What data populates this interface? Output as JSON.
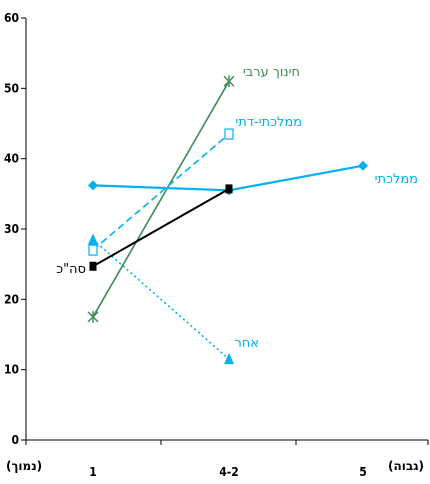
{
  "chart_data": {
    "type": "line",
    "title": "",
    "xlabel": "",
    "ylabel": "",
    "ylim": [
      0,
      60
    ],
    "yticks": [
      0,
      10,
      20,
      30,
      40,
      50,
      60
    ],
    "categories": [
      "1",
      "4-2",
      "5"
    ],
    "x_axis_left_label": "(נמוך)",
    "x_axis_right_label": "(גבוה)",
    "grid": false,
    "series": [
      {
        "name": "חינוך ערבי",
        "color": "#3d8b55",
        "marker": "x",
        "dash": "solid",
        "values": [
          17.5,
          51.0,
          null
        ]
      },
      {
        "name": "ממלכתי-דתי",
        "color": "#00b0f0",
        "marker": "square-open",
        "dash": "dashed",
        "values": [
          27.0,
          43.5,
          null
        ]
      },
      {
        "name": "ממלכתי",
        "color": "#00b0f0",
        "marker": "diamond",
        "dash": "solid",
        "values": [
          36.2,
          35.5,
          39.0
        ]
      },
      {
        "name": "סה\"כ",
        "color": "#000000",
        "marker": "square",
        "dash": "solid",
        "values": [
          24.7,
          35.7,
          null
        ]
      },
      {
        "name": "אחר",
        "color": "#00b0f0",
        "marker": "triangle",
        "dash": "dotted",
        "values": [
          28.5,
          11.5,
          null
        ]
      }
    ]
  }
}
